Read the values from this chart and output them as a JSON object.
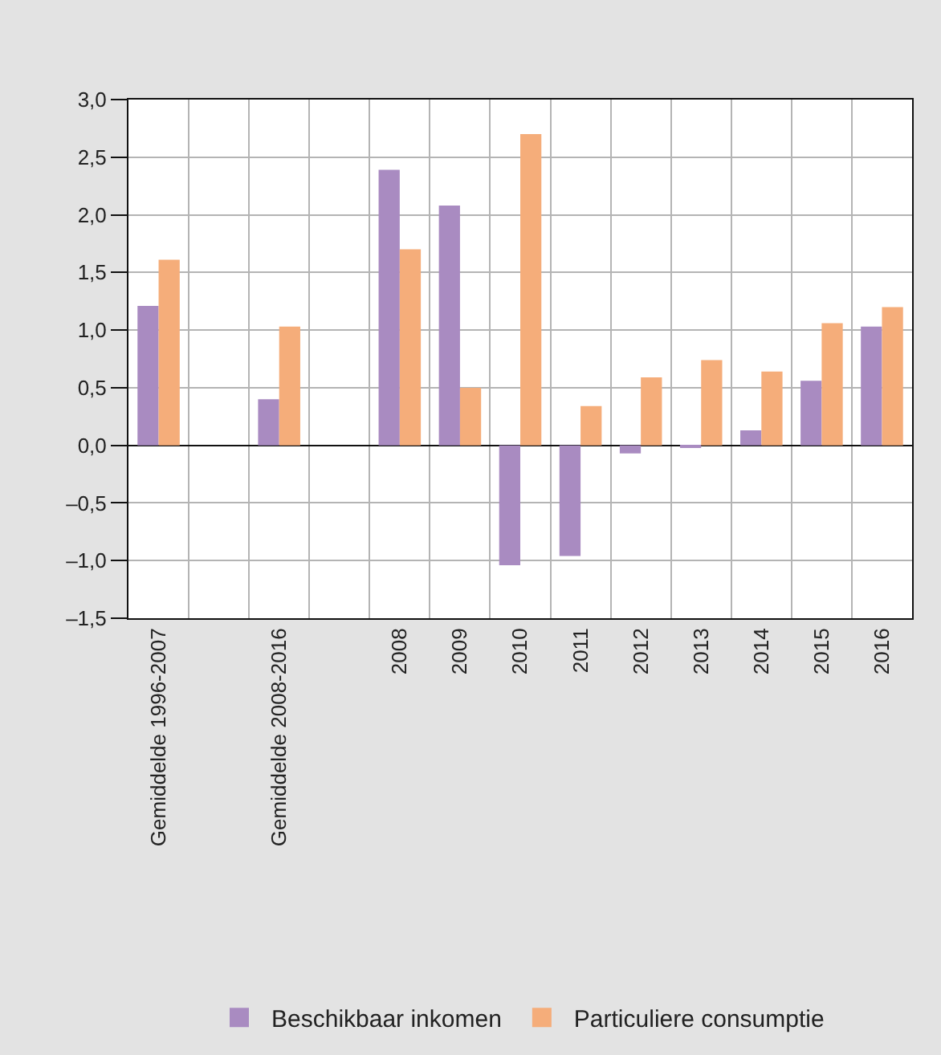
{
  "chart_data": {
    "type": "bar",
    "categories": [
      "Gemiddelde 1996-2007",
      null,
      "Gemiddelde 2008-2016",
      null,
      "2008",
      "2009",
      "2010",
      "2011",
      "2012",
      "2013",
      "2014",
      "2015",
      "2016"
    ],
    "series": [
      {
        "name": "Beschikbaar inkomen",
        "color": "#a98bc1",
        "values": [
          1.21,
          null,
          0.4,
          null,
          2.39,
          2.08,
          -1.04,
          -0.96,
          -0.07,
          -0.02,
          0.13,
          0.56,
          1.03
        ]
      },
      {
        "name": "Particuliere consumptie",
        "color": "#f5ad7a",
        "values": [
          1.61,
          null,
          1.03,
          null,
          1.7,
          0.5,
          2.7,
          0.34,
          0.59,
          0.74,
          0.64,
          1.06,
          1.2
        ]
      }
    ],
    "ylim": [
      -1.5,
      3.0
    ],
    "yticks": [
      {
        "value": -1.5,
        "label": "–1,5"
      },
      {
        "value": -1.0,
        "label": "–1,0"
      },
      {
        "value": -0.5,
        "label": "–0,5"
      },
      {
        "value": 0.0,
        "label": "0,0"
      },
      {
        "value": 0.5,
        "label": "0,5"
      },
      {
        "value": 1.0,
        "label": "1,0"
      },
      {
        "value": 1.5,
        "label": "1,5"
      },
      {
        "value": 2.0,
        "label": "2,0"
      },
      {
        "value": 2.5,
        "label": "2,5"
      },
      {
        "value": 3.0,
        "label": "3,0"
      }
    ],
    "grid": true,
    "legend": "bottom"
  }
}
